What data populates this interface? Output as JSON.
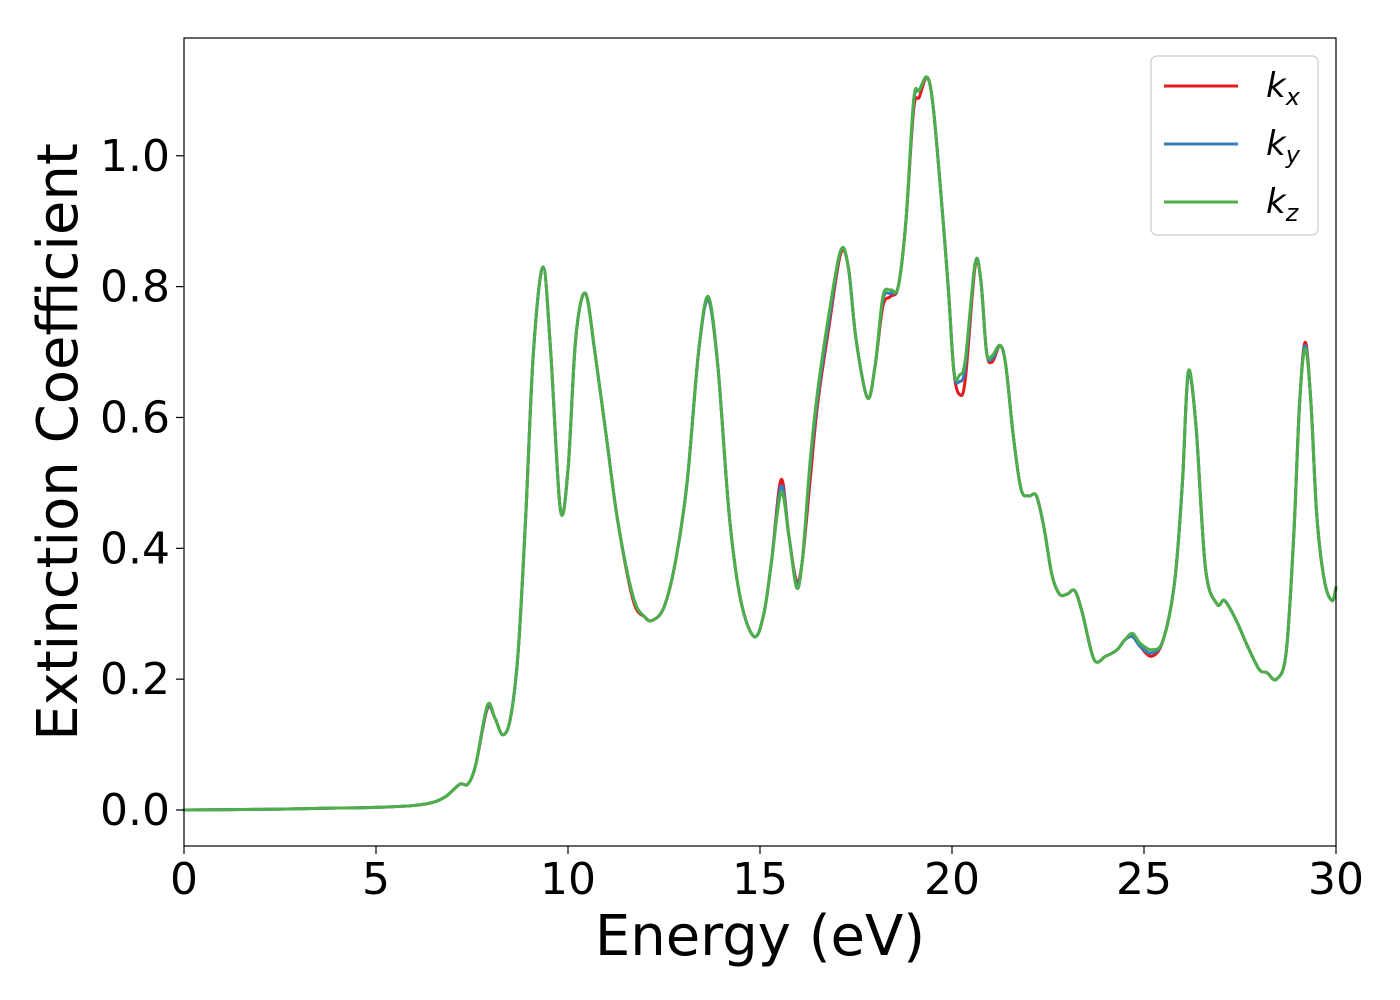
{
  "chart_data": {
    "type": "line",
    "title": "",
    "xlabel": "Energy (eV)",
    "ylabel": "Extinction Coefficient",
    "xlim": [
      0,
      30
    ],
    "ylim": [
      -0.055,
      1.18
    ],
    "xticks": [
      0,
      5,
      10,
      15,
      20,
      25,
      30
    ],
    "xtick_labels": [
      "0",
      "5",
      "10",
      "15",
      "20",
      "25",
      "30"
    ],
    "yticks": [
      0.0,
      0.2,
      0.4,
      0.6,
      0.8,
      1.0
    ],
    "ytick_labels": [
      "0.0",
      "0.2",
      "0.4",
      "0.6",
      "0.8",
      "1.0"
    ],
    "grid": false,
    "legend_position": "top-right",
    "series": [
      {
        "name": "kx",
        "name_base": "k",
        "name_sub": "x",
        "color": "#e41a1c",
        "x": [
          0,
          2,
          4,
          5,
          6,
          6.5,
          6.8,
          7.0,
          7.2,
          7.4,
          7.6,
          7.9,
          8.1,
          8.3,
          8.5,
          8.7,
          8.9,
          9.1,
          9.35,
          9.55,
          9.8,
          10.0,
          10.2,
          10.45,
          10.7,
          11.0,
          11.3,
          11.7,
          12.0,
          12.2,
          12.5,
          12.8,
          13.1,
          13.4,
          13.65,
          13.9,
          14.2,
          14.5,
          14.85,
          15.1,
          15.3,
          15.55,
          15.75,
          15.95,
          16.1,
          16.3,
          16.5,
          16.8,
          17.1,
          17.3,
          17.5,
          17.8,
          18.0,
          18.2,
          18.4,
          18.6,
          18.8,
          19.0,
          19.15,
          19.35,
          19.5,
          19.7,
          19.9,
          20.05,
          20.2,
          20.35,
          20.6,
          20.75,
          20.9,
          21.05,
          21.25,
          21.4,
          21.6,
          21.8,
          22.0,
          22.2,
          22.4,
          22.6,
          22.8,
          23.0,
          23.2,
          23.4,
          23.7,
          24.0,
          24.3,
          24.5,
          24.7,
          24.9,
          25.2,
          25.5,
          25.8,
          26.0,
          26.15,
          26.35,
          26.6,
          26.9,
          27.1,
          27.4,
          27.7,
          28.0,
          28.2,
          28.45,
          28.7,
          28.9,
          29.05,
          29.2,
          29.35,
          29.5,
          29.7,
          29.9,
          30
        ],
        "y": [
          0.0,
          0.001,
          0.003,
          0.004,
          0.007,
          0.012,
          0.02,
          0.03,
          0.04,
          0.04,
          0.07,
          0.155,
          0.14,
          0.115,
          0.14,
          0.24,
          0.45,
          0.7,
          0.83,
          0.7,
          0.46,
          0.52,
          0.72,
          0.79,
          0.7,
          0.57,
          0.44,
          0.32,
          0.295,
          0.29,
          0.31,
          0.38,
          0.5,
          0.7,
          0.78,
          0.68,
          0.45,
          0.32,
          0.265,
          0.3,
          0.38,
          0.505,
          0.42,
          0.35,
          0.38,
          0.5,
          0.62,
          0.74,
          0.85,
          0.83,
          0.72,
          0.63,
          0.68,
          0.77,
          0.785,
          0.8,
          0.9,
          1.07,
          1.09,
          1.12,
          1.08,
          0.95,
          0.8,
          0.67,
          0.635,
          0.66,
          0.83,
          0.81,
          0.7,
          0.685,
          0.71,
          0.68,
          0.57,
          0.49,
          0.48,
          0.48,
          0.43,
          0.36,
          0.33,
          0.33,
          0.335,
          0.3,
          0.23,
          0.235,
          0.245,
          0.26,
          0.265,
          0.25,
          0.235,
          0.26,
          0.35,
          0.5,
          0.665,
          0.59,
          0.37,
          0.315,
          0.32,
          0.29,
          0.25,
          0.215,
          0.21,
          0.2,
          0.24,
          0.42,
          0.62,
          0.715,
          0.62,
          0.45,
          0.35,
          0.32,
          0.34
        ]
      },
      {
        "name": "ky",
        "name_base": "k",
        "name_sub": "y",
        "color": "#377eb8",
        "x": [
          0,
          2,
          4,
          5,
          6,
          6.5,
          6.8,
          7.0,
          7.2,
          7.4,
          7.6,
          7.9,
          8.1,
          8.3,
          8.5,
          8.7,
          8.9,
          9.1,
          9.35,
          9.55,
          9.8,
          10.0,
          10.2,
          10.45,
          10.7,
          11.0,
          11.3,
          11.7,
          12.0,
          12.2,
          12.5,
          12.8,
          13.1,
          13.4,
          13.65,
          13.9,
          14.2,
          14.5,
          14.85,
          15.1,
          15.3,
          15.55,
          15.75,
          15.95,
          16.1,
          16.3,
          16.5,
          16.8,
          17.1,
          17.3,
          17.5,
          17.8,
          18.0,
          18.2,
          18.4,
          18.6,
          18.8,
          19.0,
          19.15,
          19.35,
          19.5,
          19.7,
          19.9,
          20.05,
          20.2,
          20.35,
          20.6,
          20.75,
          20.9,
          21.05,
          21.25,
          21.4,
          21.6,
          21.8,
          22.0,
          22.2,
          22.4,
          22.6,
          22.8,
          23.0,
          23.2,
          23.4,
          23.7,
          24.0,
          24.3,
          24.5,
          24.7,
          24.9,
          25.2,
          25.5,
          25.8,
          26.0,
          26.15,
          26.35,
          26.6,
          26.9,
          27.1,
          27.4,
          27.7,
          28.0,
          28.2,
          28.45,
          28.7,
          28.9,
          29.05,
          29.2,
          29.35,
          29.5,
          29.7,
          29.9,
          30
        ],
        "y": [
          0.0,
          0.001,
          0.003,
          0.004,
          0.007,
          0.012,
          0.02,
          0.03,
          0.04,
          0.04,
          0.07,
          0.157,
          0.14,
          0.115,
          0.14,
          0.24,
          0.45,
          0.7,
          0.83,
          0.7,
          0.46,
          0.52,
          0.72,
          0.79,
          0.7,
          0.57,
          0.44,
          0.325,
          0.295,
          0.29,
          0.31,
          0.38,
          0.5,
          0.7,
          0.78,
          0.68,
          0.45,
          0.32,
          0.265,
          0.3,
          0.38,
          0.495,
          0.42,
          0.345,
          0.38,
          0.52,
          0.63,
          0.75,
          0.855,
          0.83,
          0.72,
          0.63,
          0.68,
          0.78,
          0.79,
          0.8,
          0.9,
          1.08,
          1.1,
          1.12,
          1.08,
          0.95,
          0.8,
          0.67,
          0.655,
          0.68,
          0.835,
          0.81,
          0.7,
          0.69,
          0.71,
          0.68,
          0.57,
          0.49,
          0.48,
          0.48,
          0.43,
          0.36,
          0.33,
          0.33,
          0.335,
          0.3,
          0.23,
          0.235,
          0.245,
          0.26,
          0.265,
          0.25,
          0.24,
          0.26,
          0.35,
          0.5,
          0.665,
          0.59,
          0.37,
          0.315,
          0.32,
          0.29,
          0.25,
          0.215,
          0.21,
          0.2,
          0.24,
          0.42,
          0.62,
          0.71,
          0.62,
          0.45,
          0.35,
          0.32,
          0.34
        ]
      },
      {
        "name": "kz",
        "name_base": "k",
        "name_sub": "z",
        "color": "#4daf4a",
        "x": [
          0,
          2,
          4,
          5,
          6,
          6.5,
          6.8,
          7.0,
          7.2,
          7.4,
          7.6,
          7.9,
          8.1,
          8.3,
          8.5,
          8.7,
          8.9,
          9.1,
          9.35,
          9.55,
          9.8,
          10.0,
          10.2,
          10.45,
          10.7,
          11.0,
          11.3,
          11.7,
          12.0,
          12.2,
          12.5,
          12.8,
          13.1,
          13.4,
          13.65,
          13.9,
          14.2,
          14.5,
          14.85,
          15.1,
          15.3,
          15.55,
          15.75,
          15.95,
          16.1,
          16.3,
          16.5,
          16.8,
          17.1,
          17.3,
          17.5,
          17.8,
          18.0,
          18.2,
          18.4,
          18.6,
          18.8,
          19.0,
          19.15,
          19.35,
          19.5,
          19.7,
          19.9,
          20.05,
          20.2,
          20.35,
          20.6,
          20.75,
          20.9,
          21.05,
          21.25,
          21.4,
          21.6,
          21.8,
          22.0,
          22.2,
          22.4,
          22.6,
          22.8,
          23.0,
          23.2,
          23.4,
          23.7,
          24.0,
          24.3,
          24.5,
          24.7,
          24.9,
          25.2,
          25.5,
          25.8,
          26.0,
          26.15,
          26.35,
          26.6,
          26.9,
          27.1,
          27.4,
          27.7,
          28.0,
          28.2,
          28.45,
          28.7,
          28.9,
          29.05,
          29.2,
          29.35,
          29.5,
          29.7,
          29.9,
          30
        ],
        "y": [
          0.0,
          0.001,
          0.003,
          0.004,
          0.007,
          0.012,
          0.02,
          0.03,
          0.04,
          0.04,
          0.07,
          0.16,
          0.14,
          0.115,
          0.14,
          0.24,
          0.45,
          0.7,
          0.83,
          0.7,
          0.46,
          0.52,
          0.72,
          0.79,
          0.7,
          0.57,
          0.44,
          0.325,
          0.295,
          0.29,
          0.31,
          0.38,
          0.5,
          0.7,
          0.785,
          0.68,
          0.45,
          0.32,
          0.265,
          0.3,
          0.38,
          0.485,
          0.42,
          0.34,
          0.38,
          0.53,
          0.64,
          0.76,
          0.855,
          0.83,
          0.72,
          0.63,
          0.68,
          0.785,
          0.795,
          0.8,
          0.9,
          1.085,
          1.1,
          1.12,
          1.08,
          0.95,
          0.8,
          0.67,
          0.665,
          0.69,
          0.835,
          0.81,
          0.7,
          0.695,
          0.71,
          0.68,
          0.57,
          0.49,
          0.48,
          0.48,
          0.43,
          0.36,
          0.33,
          0.33,
          0.335,
          0.3,
          0.23,
          0.235,
          0.245,
          0.26,
          0.27,
          0.255,
          0.245,
          0.26,
          0.35,
          0.5,
          0.67,
          0.59,
          0.37,
          0.315,
          0.32,
          0.29,
          0.25,
          0.215,
          0.21,
          0.2,
          0.24,
          0.42,
          0.62,
          0.705,
          0.62,
          0.45,
          0.35,
          0.32,
          0.34
        ]
      }
    ]
  }
}
